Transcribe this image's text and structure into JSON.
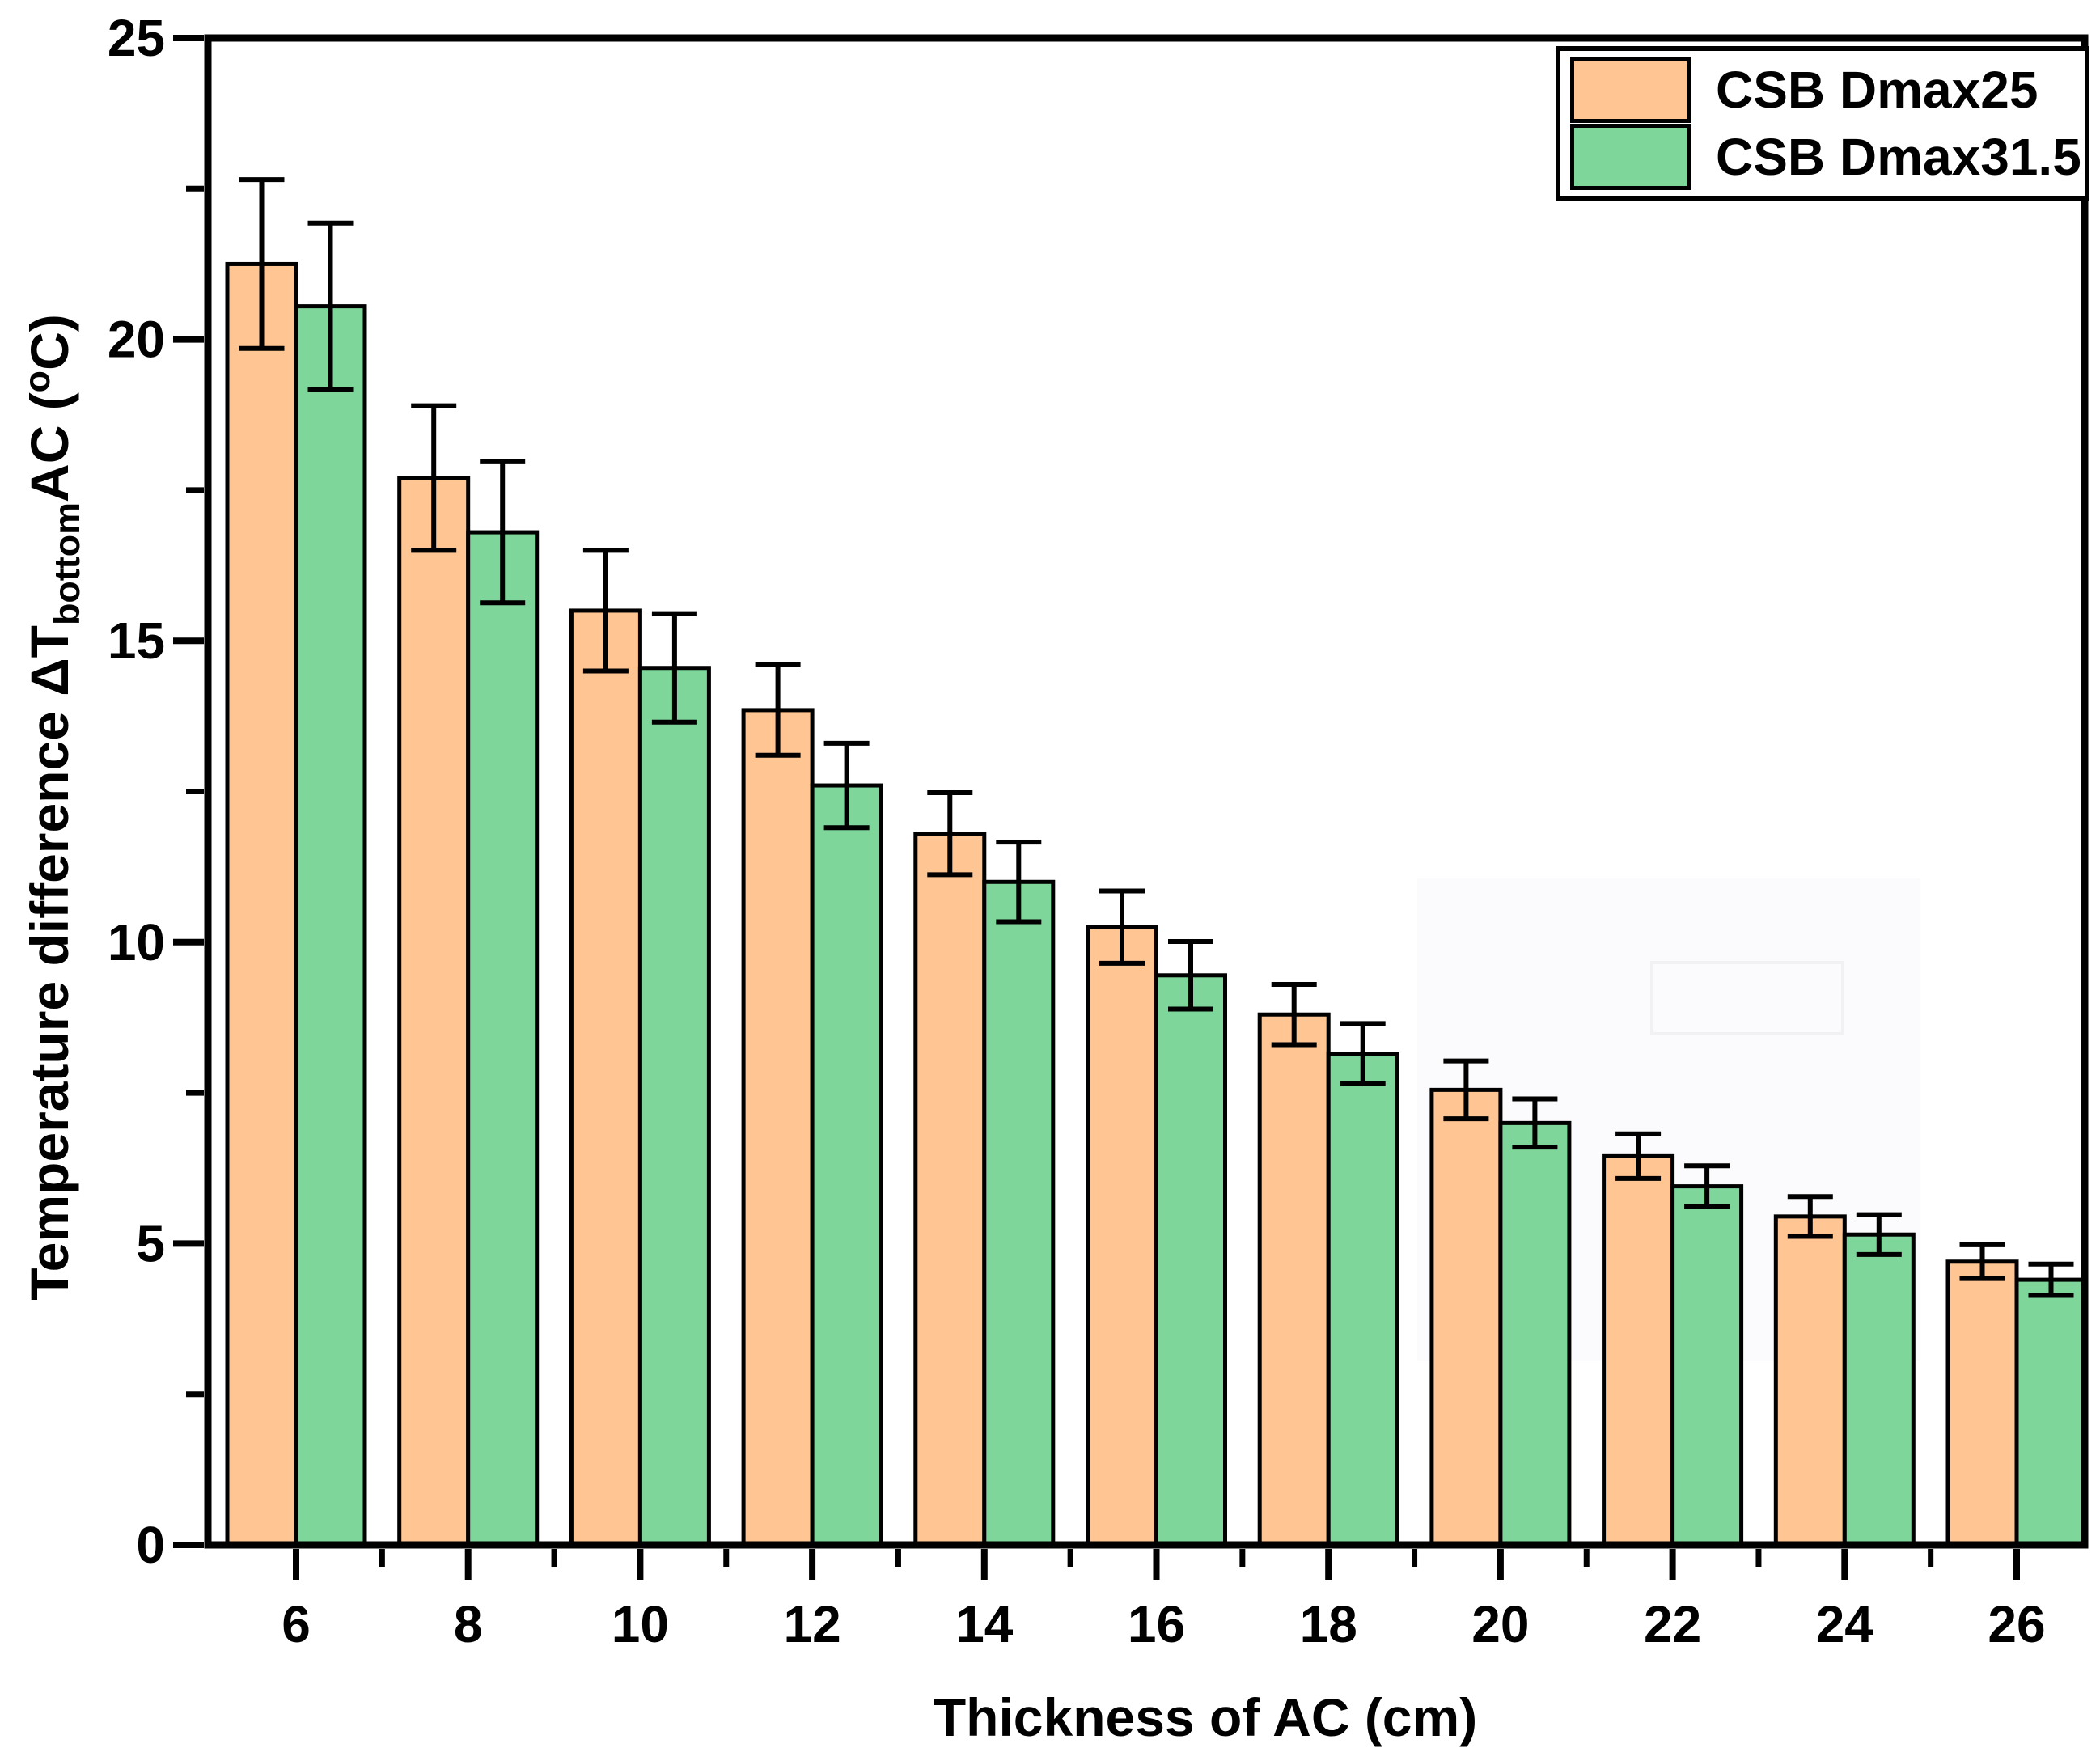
{
  "chart_data": {
    "type": "bar",
    "title": "",
    "xlabel": "Thickness of AC (cm)",
    "ylabel_plain": "Temperature difference ΔTbottomAC (oC)",
    "ylabel_rich": {
      "pre": "Temperature difference ΔT",
      "sub": "bottom",
      "mid": "AC (",
      "sup": "o",
      "post": "C)"
    },
    "categories": [
      6,
      8,
      10,
      12,
      14,
      16,
      18,
      20,
      22,
      24,
      26
    ],
    "series": [
      {
        "name": "CSB Dmax25",
        "color": "#FFC693",
        "values": [
          21.25,
          17.7,
          15.5,
          13.85,
          11.8,
          10.25,
          8.8,
          7.55,
          6.45,
          5.45,
          4.7
        ],
        "errors": [
          1.4,
          1.2,
          1.0,
          0.75,
          0.68,
          0.6,
          0.5,
          0.48,
          0.37,
          0.33,
          0.28
        ]
      },
      {
        "name": "CSB Dmax31.5",
        "color": "#7ED69A",
        "values": [
          20.55,
          16.8,
          14.55,
          12.6,
          11.0,
          9.45,
          8.15,
          7.0,
          5.95,
          5.15,
          4.4
        ],
        "errors": [
          1.38,
          1.17,
          0.9,
          0.7,
          0.66,
          0.56,
          0.5,
          0.4,
          0.34,
          0.33,
          0.26
        ]
      }
    ],
    "ylim": [
      0,
      25
    ],
    "yticks": [
      0,
      5,
      10,
      15,
      20,
      25
    ],
    "yticks_minor": [
      2.5,
      7.5,
      12.5,
      17.5,
      22.5
    ],
    "xticks_minor": [
      7,
      9,
      11,
      13,
      15,
      17,
      19,
      21,
      23,
      25
    ],
    "grid": false,
    "bar_edge_color": "#000000",
    "error_bar_color": "#000000",
    "legend_position": "top-right"
  },
  "legend": {
    "items": [
      {
        "label": "CSB Dmax25",
        "color": "#FFC693"
      },
      {
        "label": "CSB Dmax31.5",
        "color": "#7ED69A"
      }
    ]
  }
}
